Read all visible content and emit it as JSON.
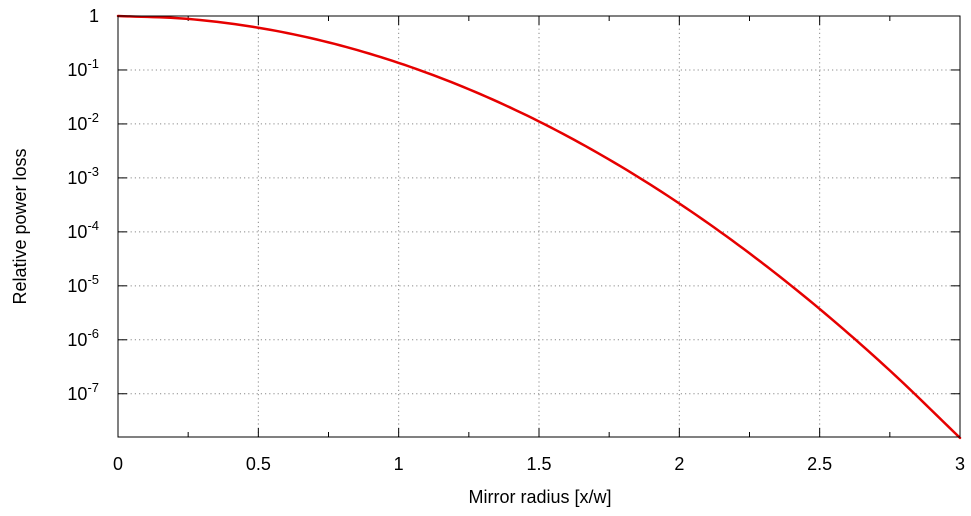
{
  "chart_data": {
    "type": "line",
    "title": "",
    "xlabel": "Mirror radius [x/w]",
    "ylabel": "Relative power loss",
    "xlim": [
      0,
      3
    ],
    "ylim": [
      1.58e-08,
      1
    ],
    "y_scale": "log",
    "grid": true,
    "legend": "none",
    "x_ticks": [
      {
        "value": 0,
        "label": "0"
      },
      {
        "value": 0.5,
        "label": "0.5"
      },
      {
        "value": 1,
        "label": "1"
      },
      {
        "value": 1.5,
        "label": "1.5"
      },
      {
        "value": 2,
        "label": "2"
      },
      {
        "value": 2.5,
        "label": "2.5"
      },
      {
        "value": 3,
        "label": "3"
      }
    ],
    "y_ticks": [
      {
        "value": 1,
        "base": "1",
        "exp": ""
      },
      {
        "value": 0.1,
        "base": "10",
        "exp": "-1"
      },
      {
        "value": 0.01,
        "base": "10",
        "exp": "-2"
      },
      {
        "value": 0.001,
        "base": "10",
        "exp": "-3"
      },
      {
        "value": 0.0001,
        "base": "10",
        "exp": "-4"
      },
      {
        "value": 1e-05,
        "base": "10",
        "exp": "-5"
      },
      {
        "value": 1e-06,
        "base": "10",
        "exp": "-6"
      },
      {
        "value": 1e-07,
        "base": "10",
        "exp": "-7"
      }
    ],
    "series": [
      {
        "color": "#e60000",
        "x": [
          0,
          0.25,
          0.5,
          0.75,
          1.0,
          1.25,
          1.5,
          1.75,
          2.0,
          2.25,
          2.5,
          2.75,
          3.0
        ],
        "y": [
          1,
          0.8825,
          0.6065,
          0.3247,
          0.1353,
          0.04394,
          0.01111,
          0.002187,
          0.0003355,
          4.008e-05,
          3.727e-06,
          2.698e-07,
          1.523e-08
        ]
      }
    ]
  }
}
